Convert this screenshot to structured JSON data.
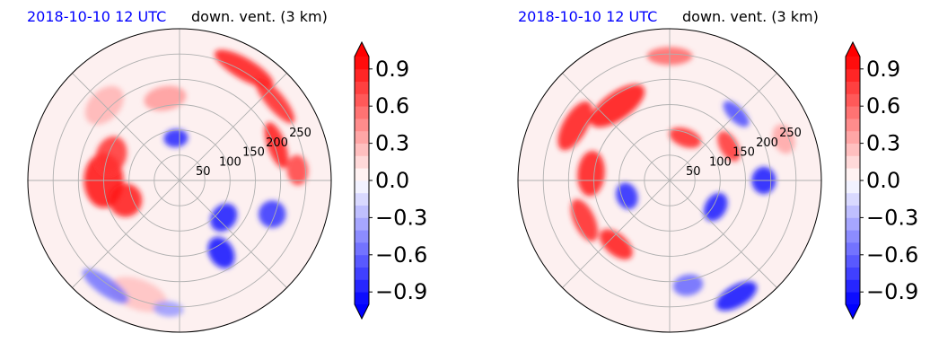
{
  "chart_data": [
    {
      "type": "polar-field",
      "title_left": "2018-10-10 12 UTC",
      "title_right": "down. vent. (3 km)",
      "radial_ticks": [
        "50",
        "100",
        "150",
        "200",
        "250"
      ],
      "radial_values": [
        50,
        100,
        150,
        200,
        250
      ],
      "radial_max": 300,
      "angular_grid_deg": 45,
      "grid": true,
      "colorbar": {
        "range": [
          -1.0,
          1.0
        ],
        "extend": "both",
        "tick_labels": [
          "0.9",
          "0.6",
          "0.3",
          "0.0",
          "−0.3",
          "−0.6",
          "−0.9"
        ],
        "tick_values": [
          0.9,
          0.6,
          0.3,
          0.0,
          -0.3,
          -0.6,
          -0.9
        ],
        "cmap": "bwr"
      },
      "features": [
        {
          "angle": 180,
          "r": 0.5,
          "w": 0.36,
          "h": 0.26,
          "val": 0.95
        },
        {
          "angle": 200,
          "r": 0.38,
          "w": 0.22,
          "h": 0.22,
          "val": 0.9
        },
        {
          "angle": 160,
          "r": 0.48,
          "w": 0.26,
          "h": 0.2,
          "val": 0.8
        },
        {
          "angle": 60,
          "r": 0.85,
          "w": 0.44,
          "h": 0.14,
          "val": 0.9
        },
        {
          "angle": 40,
          "r": 0.82,
          "w": 0.38,
          "h": 0.12,
          "val": 0.85
        },
        {
          "angle": 20,
          "r": 0.68,
          "w": 0.32,
          "h": 0.12,
          "val": 0.9
        },
        {
          "angle": 5,
          "r": 0.78,
          "w": 0.2,
          "h": 0.14,
          "val": 0.75
        },
        {
          "angle": 100,
          "r": 0.55,
          "w": 0.28,
          "h": 0.16,
          "val": 0.4
        },
        {
          "angle": 250,
          "r": 0.8,
          "w": 0.4,
          "h": 0.2,
          "val": 0.25
        },
        {
          "angle": 135,
          "r": 0.7,
          "w": 0.3,
          "h": 0.2,
          "val": 0.3
        },
        {
          "angle": 95,
          "r": 0.28,
          "w": 0.16,
          "h": 0.12,
          "val": -0.85
        },
        {
          "angle": 320,
          "r": 0.38,
          "w": 0.2,
          "h": 0.16,
          "val": -0.9
        },
        {
          "angle": 300,
          "r": 0.55,
          "w": 0.16,
          "h": 0.22,
          "val": -0.95
        },
        {
          "angle": 340,
          "r": 0.65,
          "w": 0.18,
          "h": 0.18,
          "val": -0.8
        },
        {
          "angle": 235,
          "r": 0.85,
          "w": 0.36,
          "h": 0.12,
          "val": -0.55
        },
        {
          "angle": 265,
          "r": 0.85,
          "w": 0.2,
          "h": 0.1,
          "val": -0.4
        }
      ]
    },
    {
      "type": "polar-field",
      "title_left": "2018-10-10 12 UTC",
      "title_right": "down. vent. (3 km)",
      "radial_ticks": [
        "50",
        "100",
        "150",
        "200",
        "250"
      ],
      "radial_values": [
        50,
        100,
        150,
        200,
        250
      ],
      "radial_max": 300,
      "angular_grid_deg": 45,
      "grid": true,
      "colorbar": {
        "range": [
          -1.0,
          1.0
        ],
        "extend": "both",
        "tick_labels": [
          "0.9",
          "0.6",
          "0.3",
          "0.0",
          "−0.3",
          "−0.6",
          "−0.9"
        ],
        "tick_values": [
          0.9,
          0.6,
          0.3,
          0.0,
          -0.3,
          -0.6,
          -0.9
        ],
        "cmap": "bwr"
      },
      "features": [
        {
          "angle": 125,
          "r": 0.6,
          "w": 0.42,
          "h": 0.18,
          "val": 0.95
        },
        {
          "angle": 150,
          "r": 0.72,
          "w": 0.36,
          "h": 0.16,
          "val": 0.9
        },
        {
          "angle": 175,
          "r": 0.52,
          "w": 0.3,
          "h": 0.18,
          "val": 0.9
        },
        {
          "angle": 205,
          "r": 0.62,
          "w": 0.3,
          "h": 0.14,
          "val": 0.85
        },
        {
          "angle": 230,
          "r": 0.55,
          "w": 0.26,
          "h": 0.14,
          "val": 0.9
        },
        {
          "angle": 70,
          "r": 0.3,
          "w": 0.22,
          "h": 0.12,
          "val": 0.85
        },
        {
          "angle": 30,
          "r": 0.45,
          "w": 0.22,
          "h": 0.12,
          "val": 0.8
        },
        {
          "angle": 90,
          "r": 0.82,
          "w": 0.3,
          "h": 0.12,
          "val": 0.6
        },
        {
          "angle": 20,
          "r": 0.8,
          "w": 0.2,
          "h": 0.14,
          "val": 0.35
        },
        {
          "angle": 200,
          "r": 0.3,
          "w": 0.18,
          "h": 0.14,
          "val": -0.85
        },
        {
          "angle": 330,
          "r": 0.35,
          "w": 0.2,
          "h": 0.14,
          "val": -0.9
        },
        {
          "angle": 0,
          "r": 0.62,
          "w": 0.18,
          "h": 0.16,
          "val": -0.9
        },
        {
          "angle": 300,
          "r": 0.88,
          "w": 0.3,
          "h": 0.14,
          "val": -0.95
        },
        {
          "angle": 280,
          "r": 0.7,
          "w": 0.2,
          "h": 0.14,
          "val": -0.6
        },
        {
          "angle": 45,
          "r": 0.62,
          "w": 0.22,
          "h": 0.1,
          "val": -0.7
        }
      ]
    }
  ],
  "colors": {
    "title_time": "#0000ff",
    "title_var": "#000000",
    "grid": "#b0b0b0",
    "neg_max": "#0000ff",
    "pos_max": "#ff0000",
    "neutral": "#ffffff",
    "background_tint": "#fde8e8"
  }
}
